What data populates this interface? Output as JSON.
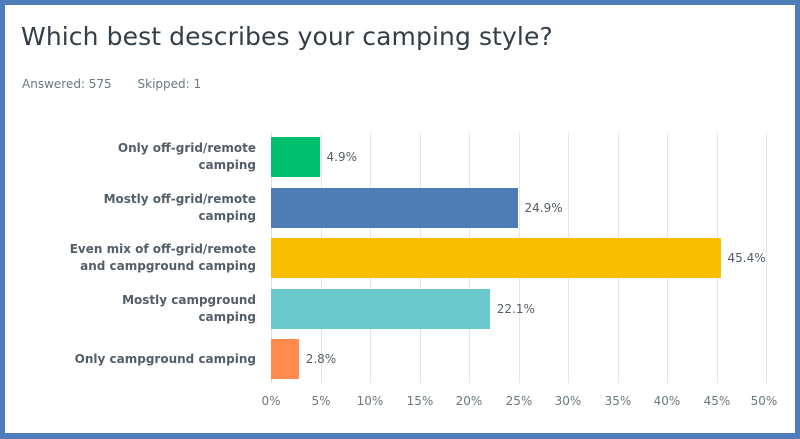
{
  "header": {
    "title": "Which best describes your camping style?",
    "answered_label": "Answered: 575",
    "skipped_label": "Skipped: 1"
  },
  "colors": {
    "frame_border": "#4f7cba",
    "bars": [
      "#00bf6f",
      "#507cb6",
      "#f9be00",
      "#6bc8cd",
      "#ff8b4f"
    ]
  },
  "chart_data": {
    "type": "bar",
    "orientation": "horizontal",
    "title": "Which best describes your camping style?",
    "subtitle": "Answered: 575   Skipped: 1",
    "categories": [
      "Only off-grid/remote camping",
      "Mostly off-grid/remote camping",
      "Even mix of off-grid/remote and campground camping",
      "Mostly campground camping",
      "Only campground camping"
    ],
    "values": [
      4.9,
      24.9,
      45.4,
      22.1,
      2.8
    ],
    "value_labels": [
      "4.9%",
      "24.9%",
      "45.4%",
      "22.1%",
      "2.8%"
    ],
    "xlabel": "",
    "ylabel": "",
    "xlim": [
      0,
      50
    ],
    "xticks": [
      "0%",
      "5%",
      "10%",
      "15%",
      "20%",
      "25%",
      "30%",
      "35%",
      "40%",
      "45%",
      "50%"
    ],
    "grid": true,
    "legend": false
  },
  "rows": [
    {
      "label_line1": "Only off-grid/remote",
      "label_line2": "camping",
      "value": "4.9%"
    },
    {
      "label_line1": "Mostly off-grid/remote",
      "label_line2": "camping",
      "value": "24.9%"
    },
    {
      "label_line1": "Even mix of off-grid/remote",
      "label_line2": "and campground camping",
      "value": "45.4%"
    },
    {
      "label_line1": "Mostly campground",
      "label_line2": "camping",
      "value": "22.1%"
    },
    {
      "label_line1": "Only campground camping",
      "label_line2": "",
      "value": "2.8%"
    }
  ]
}
